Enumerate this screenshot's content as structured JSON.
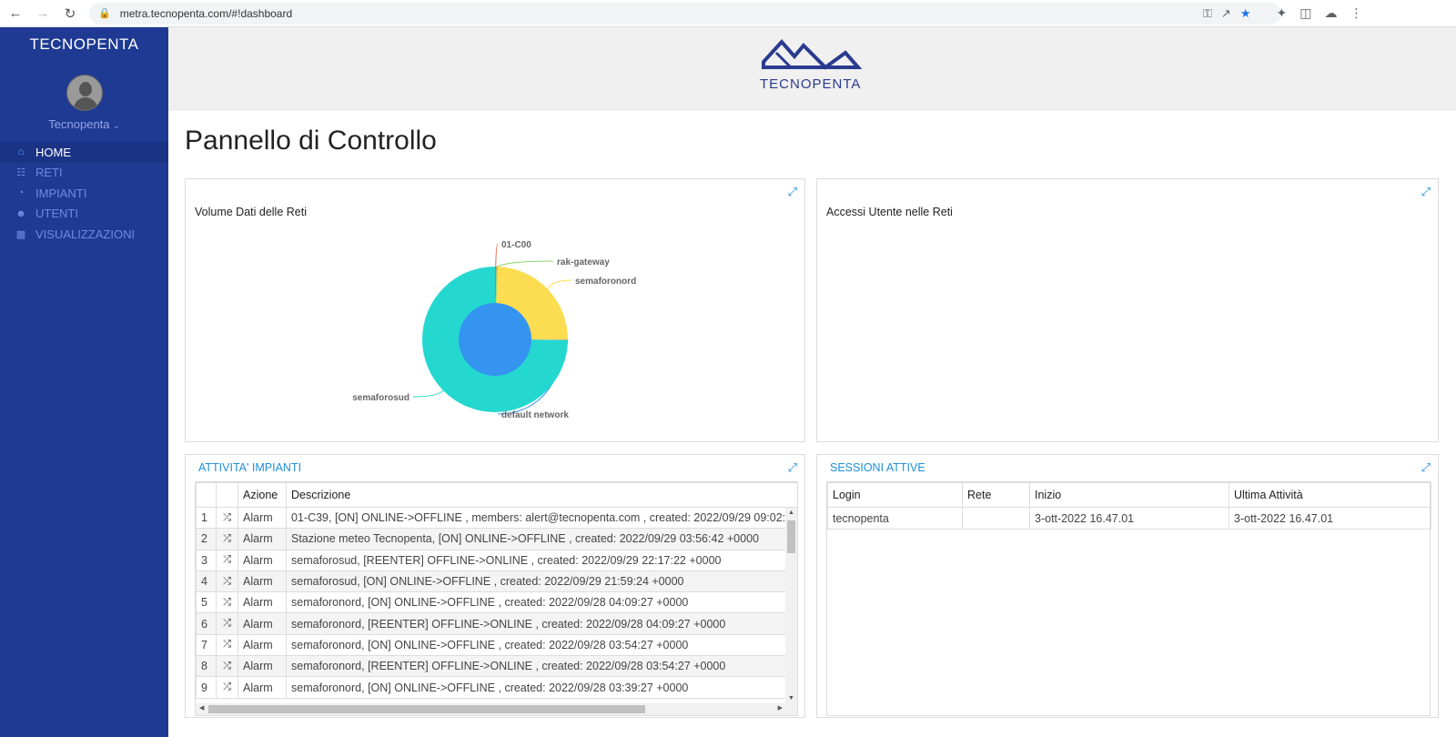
{
  "browser": {
    "url": "metra.tecnopenta.com/#!dashboard"
  },
  "sidebar": {
    "brand": "TECNOPENTA",
    "user": "Tecnopenta",
    "items": [
      {
        "label": "HOME",
        "icon": "home-icon",
        "active": true
      },
      {
        "label": "RETI",
        "icon": "sitemap-icon",
        "active": false
      },
      {
        "label": "IMPIANTI",
        "icon": "dashboard-icon",
        "active": false
      },
      {
        "label": "UTENTI",
        "icon": "users-icon",
        "active": false
      },
      {
        "label": "VISUALIZZAZIONI",
        "icon": "bar-chart-icon",
        "active": false
      }
    ]
  },
  "header": {
    "logo_text": "TECNOPENTA"
  },
  "main": {
    "title": "Pannello di Controllo"
  },
  "network_panel": {
    "title": "Volume Dati delle Reti"
  },
  "access_panel": {
    "title": "Accessi Utente nelle Reti"
  },
  "chart_data": {
    "type": "pie",
    "title": "Volume Dati delle Reti",
    "labels": [
      "01-C00",
      "rak-gateway",
      "semaforonord",
      "default network",
      "semaforosud"
    ],
    "values": [
      0.3,
      0.3,
      24.5,
      0.1,
      74.8
    ],
    "colors": [
      "#e06a4a",
      "#8fd46a",
      "#fcdc50",
      "#3494f0",
      "#24d8d0"
    ],
    "inner_series": {
      "labels": [
        "default network"
      ],
      "values": [
        100
      ],
      "colors": [
        "#3494f0"
      ]
    }
  },
  "activity": {
    "title": "ATTIVITA' IMPIANTI",
    "headers": [
      "",
      "",
      "Azione",
      "Descrizione"
    ],
    "rows": [
      {
        "n": "1",
        "action": "Alarm",
        "desc": "01-C39, [ON] ONLINE->OFFLINE , members: alert@tecnopenta.com , created: 2022/09/29 09:02:"
      },
      {
        "n": "2",
        "action": "Alarm",
        "desc": "Stazione meteo Tecnopenta, [ON] ONLINE->OFFLINE , created: 2022/09/29 03:56:42 +0000"
      },
      {
        "n": "3",
        "action": "Alarm",
        "desc": "semaforosud, [REENTER] OFFLINE->ONLINE , created: 2022/09/29 22:17:22 +0000"
      },
      {
        "n": "4",
        "action": "Alarm",
        "desc": "semaforosud, [ON] ONLINE->OFFLINE , created: 2022/09/29 21:59:24 +0000"
      },
      {
        "n": "5",
        "action": "Alarm",
        "desc": "semaforonord, [ON] ONLINE->OFFLINE , created: 2022/09/28 04:09:27 +0000"
      },
      {
        "n": "6",
        "action": "Alarm",
        "desc": "semaforonord, [REENTER] OFFLINE->ONLINE , created: 2022/09/28 04:09:27 +0000"
      },
      {
        "n": "7",
        "action": "Alarm",
        "desc": "semaforonord, [ON] ONLINE->OFFLINE , created: 2022/09/28 03:54:27 +0000"
      },
      {
        "n": "8",
        "action": "Alarm",
        "desc": "semaforonord, [REENTER] OFFLINE->ONLINE , created: 2022/09/28 03:54:27 +0000"
      },
      {
        "n": "9",
        "action": "Alarm",
        "desc": "semaforonord, [ON] ONLINE->OFFLINE , created: 2022/09/28 03:39:27 +0000"
      }
    ]
  },
  "sessions": {
    "title": "SESSIONI ATTIVE",
    "headers": [
      "Login",
      "Rete",
      "Inizio",
      "Ultima Attività"
    ],
    "rows": [
      {
        "login": "tecnopenta",
        "rete": "",
        "inizio": "3-ott-2022 16.47.01",
        "ultima": "3-ott-2022 16.47.01"
      }
    ]
  }
}
